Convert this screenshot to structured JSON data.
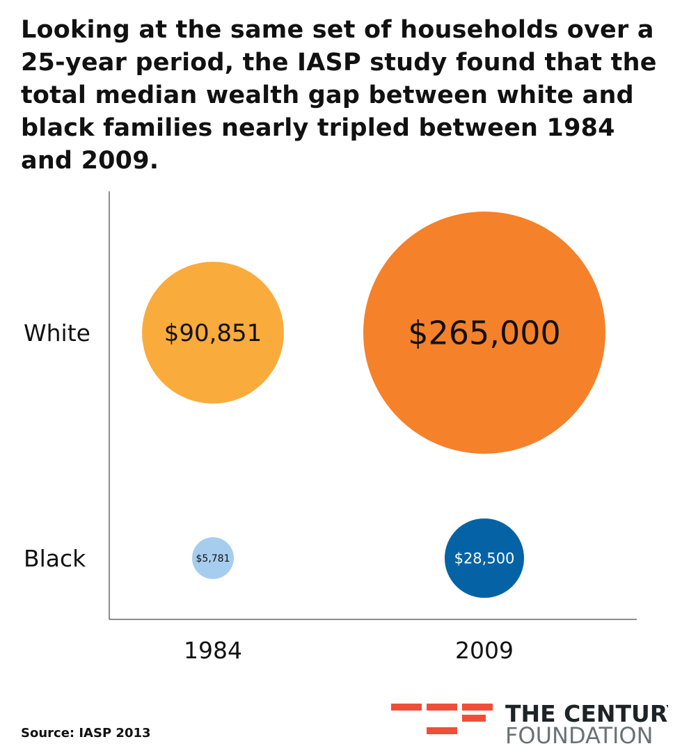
{
  "title": "Looking at the same set of households over a 25-year period, the IASP  study found that the total median wealth gap between white and black families nearly tripled between 1984 and 2009.",
  "source": "Source: IASP 2013",
  "logo": {
    "line1": "THE CENTURY",
    "line2": "FOUNDATION",
    "accent_color": "#ef4e3a"
  },
  "chart_data": {
    "type": "bubble",
    "title": "",
    "x_categories": [
      "1984",
      "2009"
    ],
    "y_categories": [
      "White",
      "Black"
    ],
    "points": [
      {
        "x": "1984",
        "y": "White",
        "value": 90851,
        "label": "$90,851",
        "color": "#f9ab3c",
        "label_color": "#111111"
      },
      {
        "x": "2009",
        "y": "White",
        "value": 265000,
        "label": "$265,000",
        "color": "#f5812a",
        "label_color": "#111111"
      },
      {
        "x": "1984",
        "y": "Black",
        "value": 5781,
        "label": "$5,781",
        "color": "#a6cdee",
        "label_color": "#111111"
      },
      {
        "x": "2009",
        "y": "Black",
        "value": 28500,
        "label": "$28,500",
        "color": "#0563a5",
        "label_color": "#ffffff"
      }
    ],
    "grid": false,
    "legend": "none"
  }
}
